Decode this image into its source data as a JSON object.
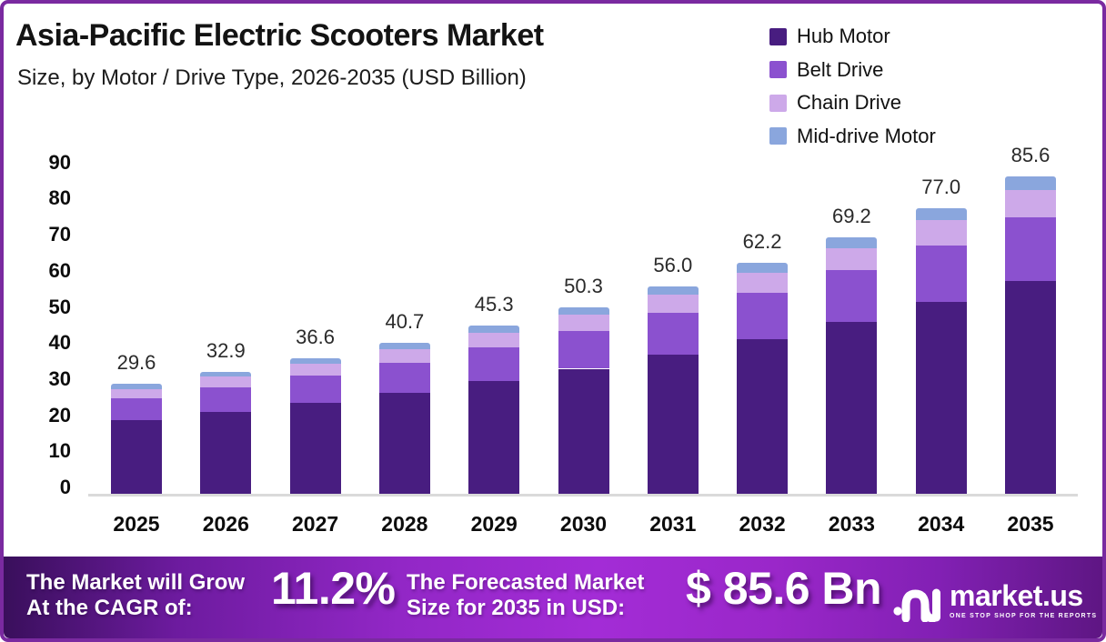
{
  "page": {
    "title": "Asia-Pacific Electric Scooters Market",
    "subtitle": "Size, by Motor / Drive Type, 2026-2035 (USD Billion)"
  },
  "chart_data": {
    "type": "bar",
    "stacked": true,
    "title": "Asia-Pacific Electric Scooters Market",
    "subtitle": "Size, by Motor / Drive Type, 2026-2035 (USD Billion)",
    "unit": "USD Billion",
    "categories": [
      "2025",
      "2026",
      "2027",
      "2028",
      "2029",
      "2030",
      "2031",
      "2032",
      "2033",
      "2034",
      "2035"
    ],
    "totals": [
      "29.6",
      "32.9",
      "36.6",
      "40.7",
      "45.3",
      "50.3",
      "56.0",
      "62.2",
      "69.2",
      "77.0",
      "85.6"
    ],
    "series": [
      {
        "name": "Hub Motor",
        "color": "#481d80",
        "values": [
          19.8,
          22.0,
          24.5,
          27.3,
          30.3,
          33.7,
          37.5,
          41.7,
          46.4,
          51.6,
          57.4
        ]
      },
      {
        "name": "Belt Drive",
        "color": "#8b51cf",
        "values": [
          5.9,
          6.6,
          7.3,
          8.1,
          9.1,
          10.1,
          11.2,
          12.4,
          13.8,
          15.4,
          17.1
        ]
      },
      {
        "name": "Chain Drive",
        "color": "#cda9e9",
        "values": [
          2.6,
          2.9,
          3.2,
          3.5,
          3.9,
          4.4,
          4.9,
          5.4,
          6.0,
          6.7,
          7.4
        ]
      },
      {
        "name": "Mid-drive Motor",
        "color": "#8aa6dd",
        "values": [
          1.3,
          1.4,
          1.6,
          1.8,
          2.0,
          2.1,
          2.4,
          2.7,
          3.0,
          3.3,
          3.7
        ]
      }
    ],
    "xlabel": "",
    "ylabel": "",
    "ylim": [
      0,
      90
    ],
    "ytick_step": 10,
    "grid": false,
    "legend_position": "top-right"
  },
  "banner": {
    "cagr_label_line1": "The Market will Grow",
    "cagr_label_line2": "At the CAGR of:",
    "cagr_value": "11.2%",
    "forecast_label_line1": "The Forecasted Market",
    "forecast_label_line2": "Size for 2035 in USD:",
    "forecast_value": "$ 85.6 Bn",
    "logo_text": "market.us",
    "logo_tagline": "ONE STOP SHOP FOR THE REPORTS"
  },
  "colors": {
    "frame_border": "#7a2aa0",
    "axis_line": "#dadada",
    "banner_start": "#390f5b",
    "banner_mid": "#a32cd6",
    "banner_end": "#5e1683",
    "text": "#131313"
  }
}
